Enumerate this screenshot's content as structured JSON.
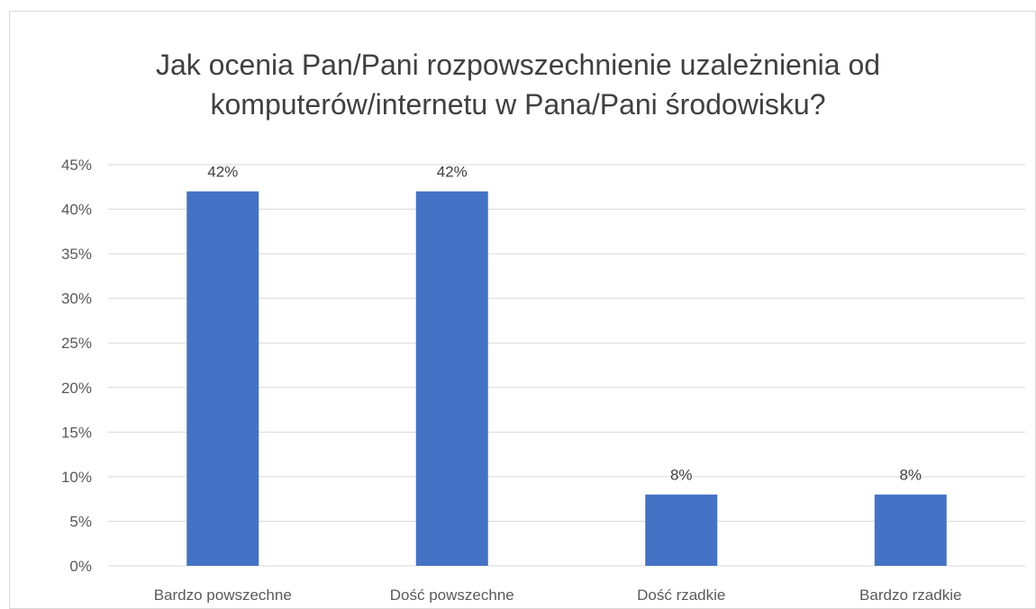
{
  "chart_data": {
    "type": "bar",
    "title_lines": [
      "Jak ocenia Pan/Pani rozpowszechnienie uzależnienia od",
      "komputerów/internetu w Pana/Pani środowisku?"
    ],
    "categories": [
      "Bardzo powszechne",
      "Dość powszechne",
      "Dość rzadkie",
      "Bardzo rzadkie"
    ],
    "values": [
      42,
      42,
      8,
      8
    ],
    "data_labels": [
      "42%",
      "42%",
      "8%",
      "8%"
    ],
    "yticks": [
      "0%",
      "5%",
      "10%",
      "15%",
      "20%",
      "25%",
      "30%",
      "35%",
      "40%",
      "45%"
    ],
    "ylim": [
      0,
      45
    ],
    "grid": true,
    "legend": "none",
    "colors": {
      "bar": "#4472c4",
      "grid": "#d9d9d9",
      "text": "#595959"
    }
  }
}
